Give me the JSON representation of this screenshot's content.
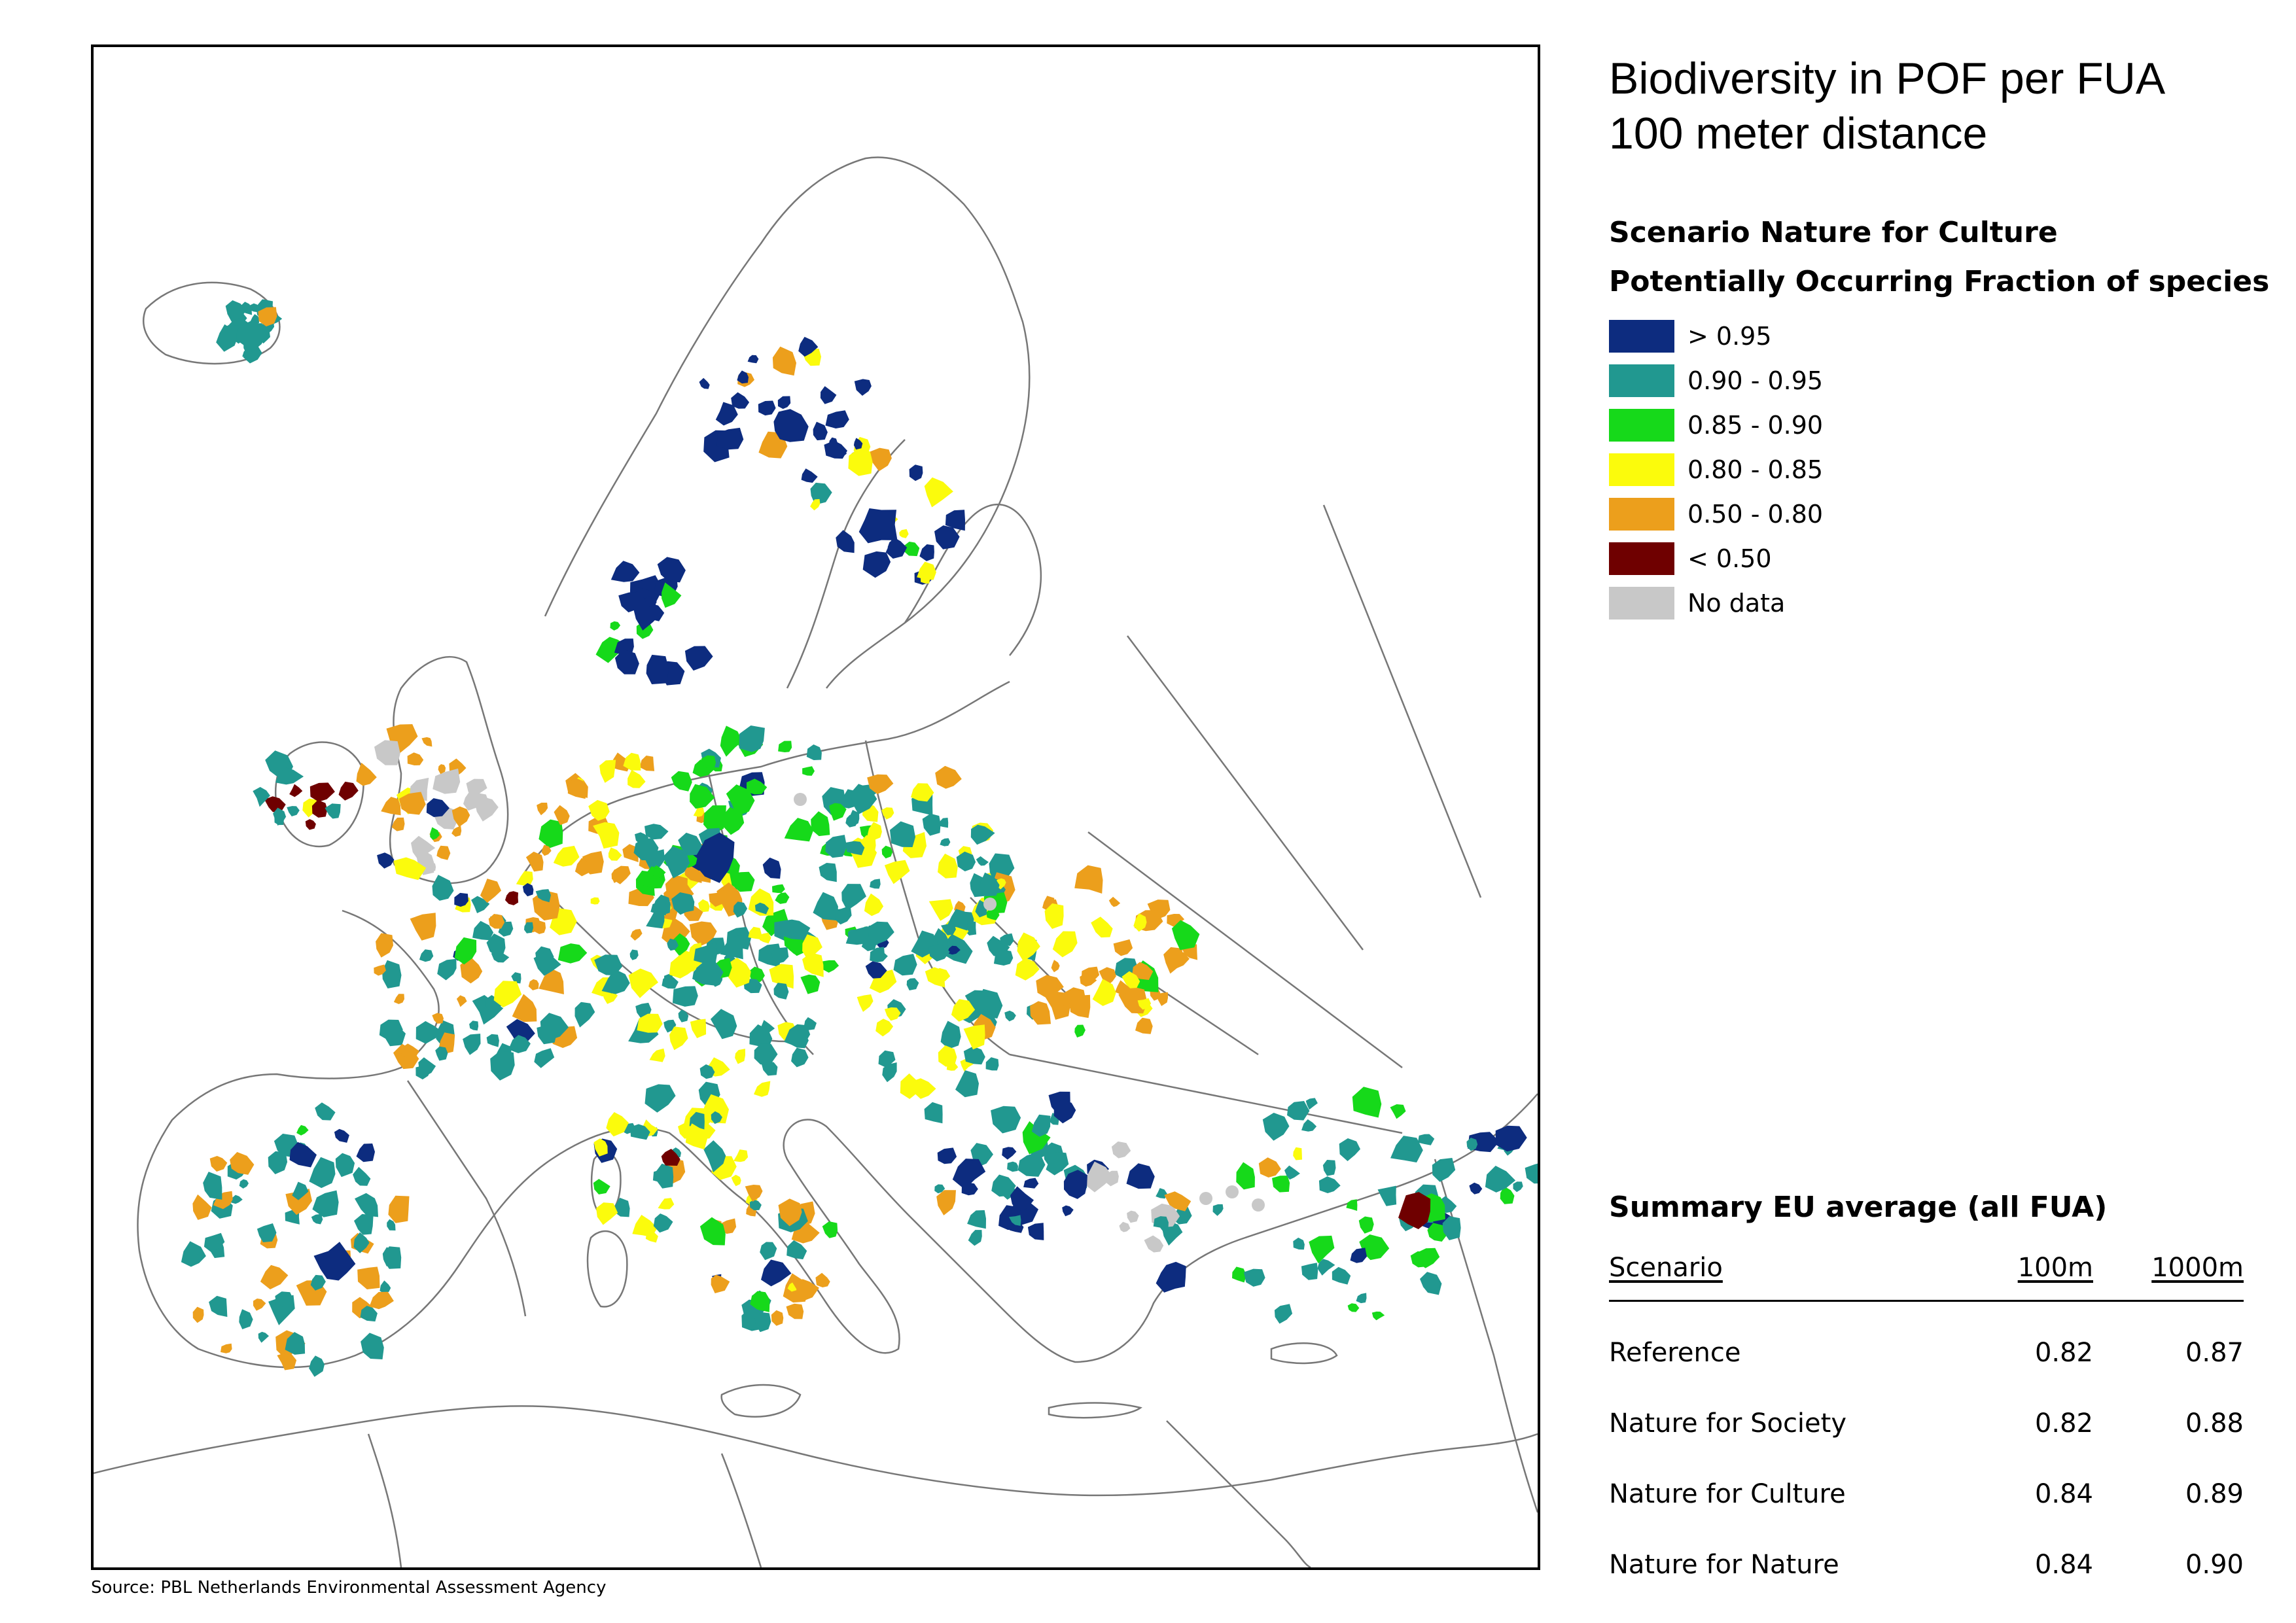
{
  "title_lines": [
    "Biodiversity in POF per FUA",
    "100 meter distance"
  ],
  "scenario_label": "Scenario Nature for Culture",
  "legend": {
    "title": "Potentially Occurring Fraction of species",
    "classes": [
      {
        "label": "> 0.95",
        "color": "#0d2c7f"
      },
      {
        "label": "0.90 - 0.95",
        "color": "#219890"
      },
      {
        "label": "0.85 - 0.90",
        "color": "#16d91a"
      },
      {
        "label": "0.80 - 0.85",
        "color": "#fbfb0c"
      },
      {
        "label": "0.50 - 0.80",
        "color": "#ec9f1c"
      },
      {
        "label": "< 0.50",
        "color": "#6f0000"
      },
      {
        "label": "No data",
        "color": "#c8c8c8"
      }
    ]
  },
  "summary": {
    "title": "Summary EU average (all FUA)",
    "headers": {
      "scenario": "Scenario",
      "col_100m": "100m",
      "col_1000m": "1000m"
    },
    "rows": [
      {
        "scenario": "Reference",
        "v100": "0.82",
        "v1000": "0.87"
      },
      {
        "scenario": "Nature for Society",
        "v100": "0.82",
        "v1000": "0.88"
      },
      {
        "scenario": "Nature for Culture",
        "v100": "0.84",
        "v1000": "0.89"
      },
      {
        "scenario": "Nature for Nature",
        "v100": "0.84",
        "v1000": "0.90"
      }
    ]
  },
  "source": "Source: PBL Netherlands Environmental Assessment Agency"
}
